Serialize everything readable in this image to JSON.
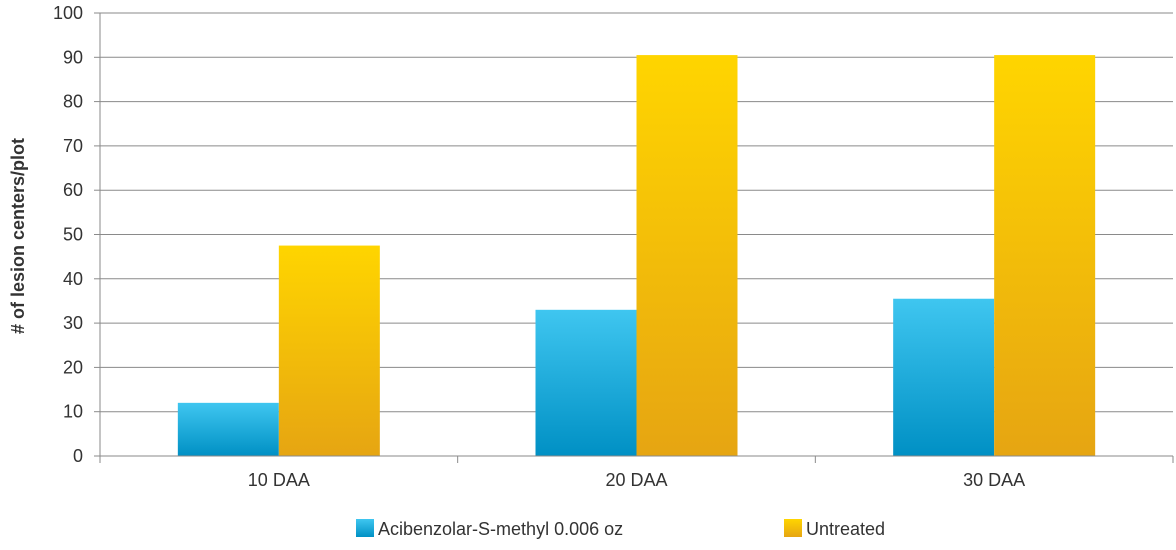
{
  "chart_data": {
    "type": "bar",
    "title": "",
    "xlabel": "",
    "ylabel": "# of lesion centers/plot",
    "categories": [
      "10 DAA",
      "20 DAA",
      "30 DAA"
    ],
    "series": [
      {
        "name": "Acibenzolar-S-methyl 0.006 oz",
        "values": [
          12,
          33,
          35.5
        ],
        "color": "#1aa9dd",
        "gradient": [
          "#3fc6f0",
          "#0090c4"
        ]
      },
      {
        "name": "Untreated",
        "values": [
          47.5,
          90.5,
          90.5
        ],
        "color": "#f2b800",
        "gradient": [
          "#ffd500",
          "#e6a512"
        ]
      }
    ],
    "ylim": [
      0,
      100
    ],
    "yticks": [
      0,
      10,
      20,
      30,
      40,
      50,
      60,
      70,
      80,
      90,
      100
    ],
    "grid": true,
    "legend_position": "bottom"
  }
}
